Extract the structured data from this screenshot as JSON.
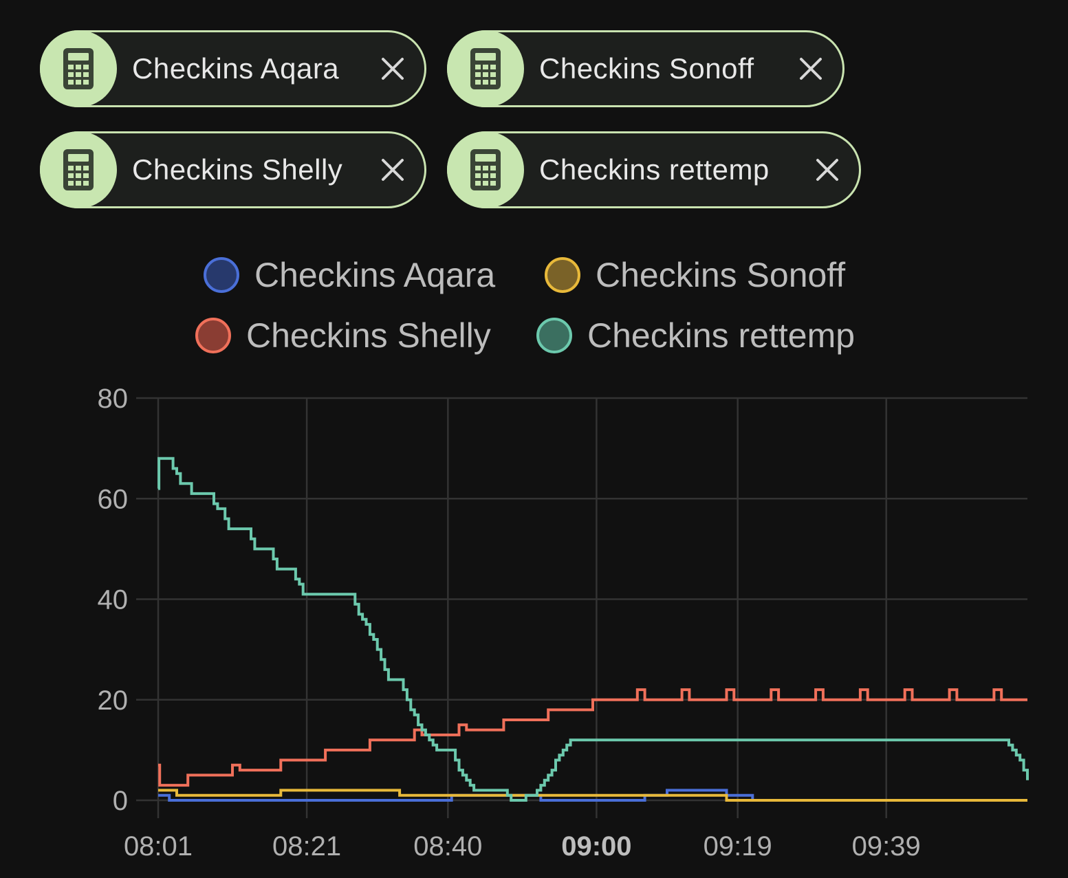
{
  "chips": [
    {
      "label": "Checkins Aqara",
      "icon": "calculator-icon"
    },
    {
      "label": "Checkins Sonoff",
      "icon": "calculator-icon"
    },
    {
      "label": "Checkins Shelly",
      "icon": "calculator-icon"
    },
    {
      "label": "Checkins rettemp",
      "icon": "calculator-icon"
    }
  ],
  "colors": {
    "chip_border": "#c9e3b0",
    "chip_avatar": "#c8e6b0",
    "aqara": "#4a6fd8",
    "sonoff": "#e8b93a",
    "shelly": "#f0705a",
    "rettemp": "#6cc9ad"
  },
  "chart_data": {
    "type": "line",
    "step": true,
    "legend_position": "top",
    "grid": true,
    "x_tick_labels": [
      "08:01",
      "08:21",
      "08:40",
      "09:00",
      "09:19",
      "09:39"
    ],
    "x_tick_values": [
      481,
      501,
      520,
      540,
      559,
      579
    ],
    "x_tick_bold": "09:00",
    "x_range": [
      481,
      598
    ],
    "y_range": [
      0,
      80
    ],
    "y_ticks": [
      0,
      20,
      40,
      60,
      80
    ],
    "series": [
      {
        "name": "Checkins Aqara",
        "color": "#4a6fd8",
        "points": [
          [
            481,
            1
          ],
          [
            482.5,
            0
          ],
          [
            520.5,
            1
          ],
          [
            532.5,
            0
          ],
          [
            537,
            0
          ],
          [
            546.5,
            1
          ],
          [
            549.5,
            2
          ],
          [
            557.5,
            1
          ],
          [
            561,
            0
          ],
          [
            598,
            0
          ]
        ]
      },
      {
        "name": "Checkins Sonoff",
        "color": "#e8b93a",
        "points": [
          [
            481,
            2
          ],
          [
            483.5,
            1
          ],
          [
            497.5,
            2
          ],
          [
            513.5,
            1
          ],
          [
            538,
            1
          ],
          [
            546.5,
            1
          ],
          [
            557.5,
            0
          ],
          [
            598,
            0
          ]
        ]
      },
      {
        "name": "Checkins Shelly",
        "color": "#f0705a",
        "points": [
          [
            481,
            7
          ],
          [
            481.2,
            3
          ],
          [
            485,
            5
          ],
          [
            491,
            7
          ],
          [
            492,
            6
          ],
          [
            497.5,
            8
          ],
          [
            503.5,
            10
          ],
          [
            509.5,
            12
          ],
          [
            515.5,
            14
          ],
          [
            516.5,
            13
          ],
          [
            521.5,
            15
          ],
          [
            522.5,
            14
          ],
          [
            527.5,
            16
          ],
          [
            533.5,
            18
          ],
          [
            539.5,
            20
          ],
          [
            545.5,
            22
          ],
          [
            546.5,
            20
          ],
          [
            551.5,
            22
          ],
          [
            552.5,
            20
          ],
          [
            557.5,
            22
          ],
          [
            558.5,
            20
          ],
          [
            563.5,
            22
          ],
          [
            564.5,
            20
          ],
          [
            569.5,
            22
          ],
          [
            570.5,
            20
          ],
          [
            575.5,
            22
          ],
          [
            576.5,
            20
          ],
          [
            581.5,
            22
          ],
          [
            582.5,
            20
          ],
          [
            587.5,
            22
          ],
          [
            588.5,
            20
          ],
          [
            593.5,
            22
          ],
          [
            594.5,
            20
          ],
          [
            598,
            20
          ]
        ]
      },
      {
        "name": "Checkins rettemp",
        "color": "#6cc9ad",
        "points": [
          [
            481,
            62
          ],
          [
            481.1,
            68
          ],
          [
            482.5,
            68
          ],
          [
            483,
            66
          ],
          [
            483.5,
            65
          ],
          [
            484,
            63
          ],
          [
            485,
            63
          ],
          [
            485.5,
            61
          ],
          [
            488,
            61
          ],
          [
            488.5,
            59
          ],
          [
            489,
            58
          ],
          [
            489.5,
            58
          ],
          [
            490,
            56
          ],
          [
            490.5,
            54
          ],
          [
            493,
            54
          ],
          [
            493.5,
            52
          ],
          [
            494,
            50
          ],
          [
            496,
            50
          ],
          [
            496.5,
            48
          ],
          [
            497,
            46
          ],
          [
            499,
            46
          ],
          [
            499.5,
            44
          ],
          [
            500,
            43
          ],
          [
            500.5,
            41
          ],
          [
            507,
            41
          ],
          [
            507.5,
            39
          ],
          [
            508,
            37
          ],
          [
            508.5,
            36
          ],
          [
            509,
            35
          ],
          [
            509.5,
            33
          ],
          [
            510,
            32
          ],
          [
            510.5,
            30
          ],
          [
            511,
            28
          ],
          [
            511.5,
            26
          ],
          [
            512,
            24
          ],
          [
            513.5,
            24
          ],
          [
            514,
            22
          ],
          [
            514.5,
            20
          ],
          [
            515,
            18
          ],
          [
            515.5,
            17
          ],
          [
            516,
            15
          ],
          [
            516.5,
            14
          ],
          [
            517,
            13
          ],
          [
            517.5,
            12
          ],
          [
            518,
            11
          ],
          [
            518.5,
            10
          ],
          [
            520.5,
            10
          ],
          [
            521,
            8
          ],
          [
            521.5,
            6
          ],
          [
            522,
            5
          ],
          [
            522.5,
            4
          ],
          [
            523,
            3
          ],
          [
            523.5,
            2
          ],
          [
            527.5,
            2
          ],
          [
            528,
            1
          ],
          [
            528.5,
            0
          ],
          [
            530,
            0
          ],
          [
            530.5,
            1
          ],
          [
            531.5,
            1
          ],
          [
            532,
            2
          ],
          [
            532.5,
            3
          ],
          [
            533,
            4
          ],
          [
            533.5,
            5
          ],
          [
            534,
            6
          ],
          [
            534.5,
            8
          ],
          [
            535,
            9
          ],
          [
            535.5,
            10
          ],
          [
            536,
            11
          ],
          [
            536.5,
            12
          ],
          [
            595,
            12
          ],
          [
            595.5,
            11
          ],
          [
            596,
            10
          ],
          [
            596.5,
            9
          ],
          [
            597,
            8
          ],
          [
            597.5,
            6
          ],
          [
            598,
            4
          ]
        ]
      }
    ]
  }
}
